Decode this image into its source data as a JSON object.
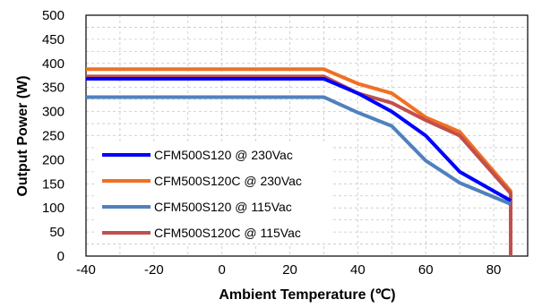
{
  "chart_data": {
    "type": "line",
    "title": "",
    "xlabel": "Ambient Temperature (℃)",
    "ylabel": "Output Power (W)",
    "xlim": [
      -40,
      90
    ],
    "ylim": [
      0,
      500
    ],
    "x_ticks": [
      -40,
      -20,
      0,
      20,
      40,
      60,
      80
    ],
    "y_ticks": [
      0,
      50,
      100,
      150,
      200,
      250,
      300,
      350,
      400,
      450,
      500
    ],
    "grid": true,
    "legend_position": "lower-left",
    "series": [
      {
        "name": "CFM500S120C @ 230Vac",
        "color": "#f07022",
        "x": [
          -40,
          30,
          40,
          50,
          60,
          70,
          85,
          85
        ],
        "y": [
          388,
          388,
          358,
          338,
          288,
          258,
          135,
          0
        ]
      },
      {
        "name": "CFM500S120C @ 115Vac",
        "color": "#c0504d",
        "x": [
          -40,
          30,
          40,
          50,
          60,
          70,
          85,
          85
        ],
        "y": [
          373,
          373,
          338,
          318,
          282,
          250,
          130,
          0
        ]
      },
      {
        "name": "CFM500S120 @ 230Vac",
        "color": "#0000ff",
        "x": [
          -40,
          30,
          40,
          50,
          60,
          70,
          85
        ],
        "y": [
          368,
          368,
          338,
          300,
          250,
          175,
          115
        ]
      },
      {
        "name": "CFM500S120 @ 115Vac",
        "color": "#4f81bd",
        "x": [
          -40,
          30,
          40,
          50,
          60,
          70,
          85
        ],
        "y": [
          330,
          330,
          298,
          270,
          198,
          152,
          108
        ]
      }
    ],
    "legend_order": [
      2,
      0,
      3,
      1
    ]
  }
}
